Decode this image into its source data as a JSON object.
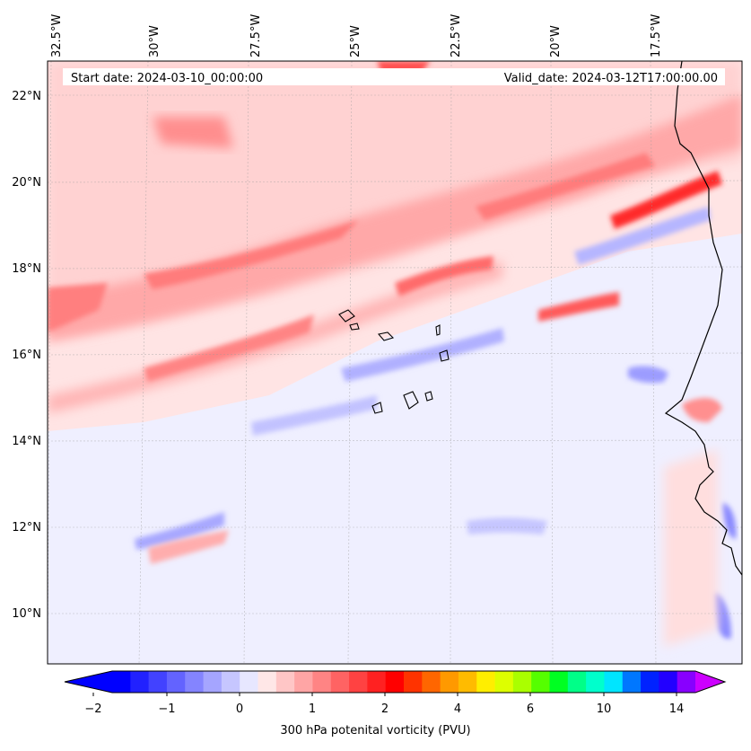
{
  "header": {
    "start_date": "Start date: 2024-03-10_00:00:00",
    "valid_date": "Valid_date: 2024-03-12T17:00:00.00"
  },
  "map": {
    "lon_labels": [
      "32.5°W",
      "30°W",
      "27.5°W",
      "25°W",
      "22.5°W",
      "20°W",
      "17.5°W"
    ],
    "lat_labels": [
      "22°N",
      "20°N",
      "18°N",
      "16°N",
      "14°N",
      "12°N",
      "10°N"
    ]
  },
  "colorbar": {
    "title": "300 hPa potenital vorticity (PVU)",
    "tick_labels": [
      "−2",
      "−1",
      "0",
      "1",
      "2",
      "4",
      "6",
      "10",
      "14"
    ],
    "colors": [
      "#0000ff",
      "#2121ff",
      "#4242ff",
      "#6363ff",
      "#8484ff",
      "#a5a5ff",
      "#c6c6ff",
      "#e7e7ff",
      "#ffe7e7",
      "#ffc6c6",
      "#ffa5a5",
      "#ff8484",
      "#ff6363",
      "#ff4242",
      "#ff2121",
      "#ff0000",
      "#ff3300",
      "#ff6600",
      "#ff9900",
      "#ffbb00",
      "#ffee00",
      "#ddff00",
      "#aaff00",
      "#55ff00",
      "#00ff22",
      "#00ff88",
      "#00ffcc",
      "#00e5ff",
      "#0077ff",
      "#0022ff",
      "#2200ff",
      "#8800ff"
    ],
    "under_color": "#0000ff",
    "over_color": "#cc00ff"
  }
}
